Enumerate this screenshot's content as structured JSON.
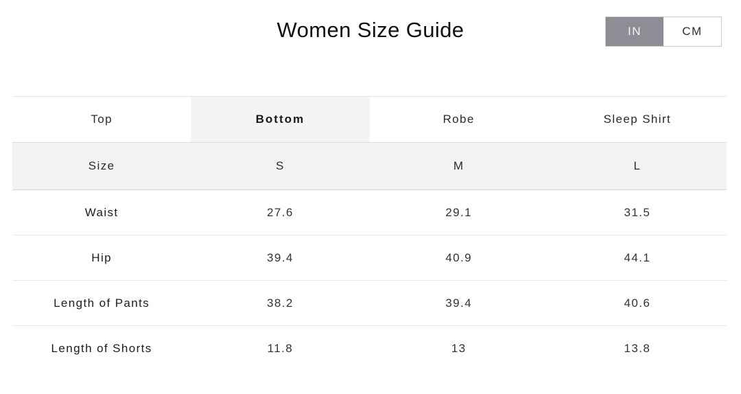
{
  "page": {
    "title": "Women Size Guide"
  },
  "unit_toggle": {
    "selected": "IN",
    "options": [
      {
        "label": "IN",
        "active": true
      },
      {
        "label": "CM",
        "active": false
      }
    ]
  },
  "tabs": [
    {
      "label": "Top",
      "active": false
    },
    {
      "label": "Bottom",
      "active": true
    },
    {
      "label": "Robe",
      "active": false
    },
    {
      "label": "Sleep Shirt",
      "active": false
    }
  ],
  "size_table": {
    "header_row": {
      "label": "Size",
      "sizes": [
        "S",
        "M",
        "L"
      ]
    },
    "rows": [
      {
        "label": "Waist",
        "values": [
          "27.6",
          "29.1",
          "31.5"
        ]
      },
      {
        "label": "Hip",
        "values": [
          "39.4",
          "40.9",
          "44.1"
        ]
      },
      {
        "label": "Length of Pants",
        "values": [
          "38.2",
          "39.4",
          "40.6"
        ]
      },
      {
        "label": "Length of Shorts",
        "values": [
          "11.8",
          "13",
          "13.8"
        ]
      }
    ]
  },
  "colors": {
    "toggle_active_bg": "#8d8d96",
    "toggle_border": "#c9c9c9",
    "tab_active_bg": "#f4f4f3",
    "size_row_bg": "#f2f3f2",
    "row_divider": "#e7e7e7",
    "text": "#1f1f1f"
  }
}
